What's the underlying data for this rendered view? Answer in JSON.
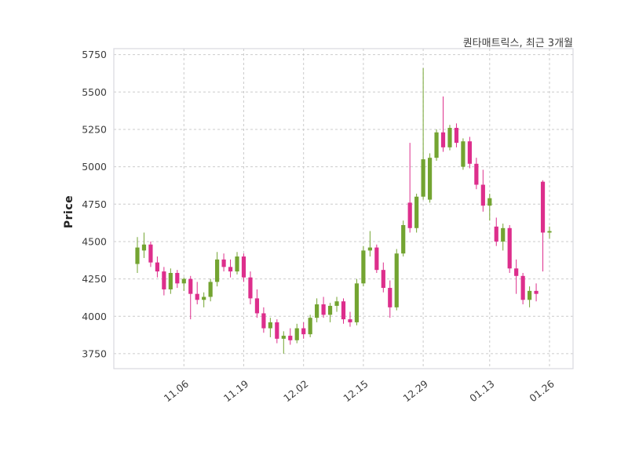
{
  "chart_data": {
    "type": "candlestick",
    "title": "퀀타매트릭스, 최근 3개월",
    "ylabel": "Price",
    "ylim": [
      3650,
      5790
    ],
    "y_ticks": [
      3750,
      4000,
      4250,
      4500,
      4750,
      5000,
      5250,
      5500,
      5750
    ],
    "x_tick_labels": [
      "11.06",
      "11.19",
      "12.02",
      "12.15",
      "12.29",
      "01.13",
      "01.26"
    ],
    "x_tick_indices": [
      7,
      16,
      25,
      34,
      43,
      53,
      62
    ],
    "grid": true,
    "legend": "none",
    "up_color": "#73a431",
    "down_color": "#dd2e8c",
    "grid_color": "#cbcbcb",
    "border_color": "#d8d8e0",
    "candles_format": "[open, high, low, close]",
    "candles": [
      [
        4350,
        4530,
        4290,
        4460
      ],
      [
        4440,
        4560,
        4390,
        4480
      ],
      [
        4480,
        4500,
        4330,
        4360
      ],
      [
        4360,
        4400,
        4260,
        4300
      ],
      [
        4300,
        4330,
        4140,
        4180
      ],
      [
        4180,
        4320,
        4150,
        4290
      ],
      [
        4290,
        4310,
        4190,
        4220
      ],
      [
        4220,
        4260,
        4170,
        4250
      ],
      [
        4250,
        4270,
        3980,
        4150
      ],
      [
        4150,
        4230,
        4080,
        4110
      ],
      [
        4110,
        4160,
        4060,
        4130
      ],
      [
        4130,
        4250,
        4100,
        4230
      ],
      [
        4230,
        4430,
        4200,
        4380
      ],
      [
        4380,
        4420,
        4300,
        4330
      ],
      [
        4330,
        4380,
        4260,
        4300
      ],
      [
        4300,
        4430,
        4280,
        4400
      ],
      [
        4400,
        4420,
        4230,
        4260
      ],
      [
        4260,
        4300,
        4080,
        4120
      ],
      [
        4120,
        4180,
        3990,
        4020
      ],
      [
        4020,
        4060,
        3890,
        3920
      ],
      [
        3920,
        3990,
        3860,
        3960
      ],
      [
        3960,
        3980,
        3820,
        3850
      ],
      [
        3850,
        3900,
        3750,
        3870
      ],
      [
        3870,
        3920,
        3810,
        3840
      ],
      [
        3840,
        3950,
        3820,
        3920
      ],
      [
        3920,
        3960,
        3850,
        3880
      ],
      [
        3880,
        4010,
        3860,
        3990
      ],
      [
        3990,
        4120,
        3960,
        4080
      ],
      [
        4080,
        4130,
        3990,
        4010
      ],
      [
        4010,
        4090,
        3960,
        4070
      ],
      [
        4070,
        4130,
        4030,
        4100
      ],
      [
        4100,
        4120,
        3950,
        3980
      ],
      [
        3980,
        4030,
        3930,
        3960
      ],
      [
        3960,
        4250,
        3940,
        4220
      ],
      [
        4220,
        4470,
        4200,
        4440
      ],
      [
        4440,
        4570,
        4400,
        4460
      ],
      [
        4460,
        4480,
        4290,
        4310
      ],
      [
        4310,
        4360,
        4160,
        4190
      ],
      [
        4190,
        4240,
        3990,
        4060
      ],
      [
        4060,
        4450,
        4040,
        4420
      ],
      [
        4420,
        4640,
        4400,
        4610
      ],
      [
        4760,
        5160,
        4560,
        4590
      ],
      [
        4590,
        4820,
        4560,
        4800
      ],
      [
        4800,
        5660,
        4780,
        5050
      ],
      [
        4780,
        5090,
        4760,
        5060
      ],
      [
        5060,
        5250,
        5040,
        5230
      ],
      [
        5230,
        5470,
        5100,
        5130
      ],
      [
        5130,
        5280,
        5110,
        5260
      ],
      [
        5260,
        5290,
        5130,
        5160
      ],
      [
        5000,
        5190,
        4980,
        5170
      ],
      [
        5170,
        5200,
        4990,
        5020
      ],
      [
        5020,
        5060,
        4850,
        4880
      ],
      [
        4880,
        4980,
        4700,
        4740
      ],
      [
        4740,
        4820,
        4640,
        4790
      ],
      [
        4600,
        4660,
        4470,
        4500
      ],
      [
        4500,
        4620,
        4440,
        4590
      ],
      [
        4590,
        4610,
        4290,
        4320
      ],
      [
        4320,
        4380,
        4150,
        4270
      ],
      [
        4270,
        4290,
        4080,
        4110
      ],
      [
        4110,
        4200,
        4060,
        4170
      ],
      [
        4170,
        4220,
        4100,
        4150
      ],
      [
        4900,
        4910,
        4300,
        4560
      ],
      [
        4560,
        4600,
        4520,
        4570
      ]
    ]
  }
}
